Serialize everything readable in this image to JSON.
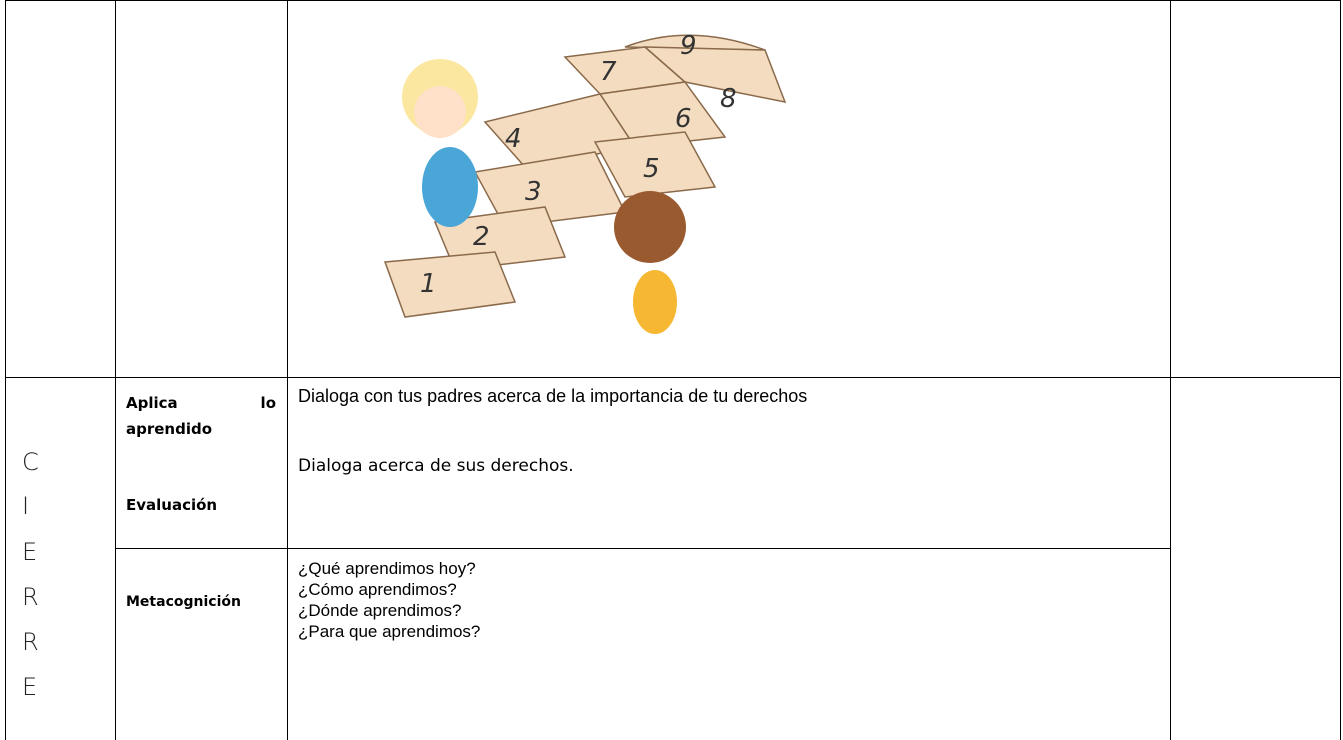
{
  "image": {
    "hopscotch_numbers": [
      "1",
      "2",
      "3",
      "4",
      "5",
      "6",
      "7",
      "8",
      "9"
    ]
  },
  "closing": {
    "stage_letters": [
      "C",
      "I",
      "E",
      "R",
      "R",
      "E"
    ],
    "sections": [
      {
        "labels": [
          "Aplica lo aprendido",
          "Evaluación"
        ],
        "lines": [
          "Dialoga con tus padres  acerca de la importancia de tu derechos",
          "Dialoga acerca de sus derechos."
        ]
      },
      {
        "labels": [
          "Metacognición"
        ],
        "lines": [
          "¿Qué aprendimos hoy?",
          "¿Cómo aprendimos?",
          "¿Dónde aprendimos?",
          "¿Para que aprendimos?"
        ]
      }
    ]
  }
}
